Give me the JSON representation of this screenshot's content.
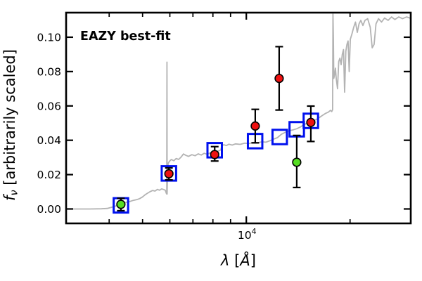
{
  "figure": {
    "annotation": {
      "text": "EAZY best-fit",
      "color": "#ee0000"
    },
    "background": "#ffffff",
    "frame_color": "#000000"
  },
  "chart_data": {
    "type": "line+scatter",
    "title": "",
    "annotation": "EAZY best-fit",
    "xlabel": "λ [Å]",
    "ylabel": "f_ν [arbitrarily scaled]",
    "x_scale": "log",
    "grid": false,
    "legend": "none",
    "xlim": [
      3000,
      30000
    ],
    "ylim": [
      -0.0084,
      0.1143
    ],
    "xlabel_parts": [
      {
        "t": "λ",
        "italic": true
      },
      {
        "t": " [",
        "italic": false
      },
      {
        "t": "Å",
        "italic": true
      },
      {
        "t": "]",
        "italic": false
      }
    ],
    "ylabel_parts": [
      {
        "t": "f",
        "italic": true
      },
      {
        "t": "ν",
        "italic": true,
        "sub": true
      },
      {
        "t": " [arbitrarily scaled]",
        "italic": false
      }
    ],
    "x_ticks": {
      "major": [
        10000
      ],
      "major_label": {
        "base": "10",
        "exp": "4"
      },
      "minor": [
        4000,
        5000,
        6000,
        7000,
        8000,
        9000,
        20000
      ]
    },
    "y_ticks": {
      "major": [
        0.0,
        0.02,
        0.04,
        0.06,
        0.08,
        0.1
      ],
      "labels": [
        "0.00",
        "0.02",
        "0.04",
        "0.06",
        "0.08",
        "0.10"
      ]
    },
    "series": [
      {
        "name": "eazy-template-spectrum",
        "type": "line",
        "color": "#b3b3b3",
        "line_width": 1.8,
        "points": [
          [
            3000,
            0.0
          ],
          [
            3500,
            0.0
          ],
          [
            3800,
            0.0001
          ],
          [
            3950,
            0.0003
          ],
          [
            4050,
            0.0009
          ],
          [
            4150,
            0.0015
          ],
          [
            4250,
            0.0023
          ],
          [
            4326,
            0.0029
          ],
          [
            4400,
            0.0034
          ],
          [
            4500,
            0.004
          ],
          [
            4600,
            0.0044
          ],
          [
            4700,
            0.005
          ],
          [
            4800,
            0.0054
          ],
          [
            4900,
            0.006
          ],
          [
            5000,
            0.007
          ],
          [
            5080,
            0.0082
          ],
          [
            5150,
            0.009
          ],
          [
            5250,
            0.01
          ],
          [
            5350,
            0.0108
          ],
          [
            5430,
            0.0104
          ],
          [
            5520,
            0.0114
          ],
          [
            5600,
            0.0109
          ],
          [
            5680,
            0.0117
          ],
          [
            5760,
            0.0113
          ],
          [
            5820,
            0.0109
          ],
          [
            5860,
            0.0091
          ],
          [
            5878,
            0.0087
          ],
          [
            5884,
            0.0855
          ],
          [
            5890,
            0.0087
          ],
          [
            5905,
            0.018
          ],
          [
            5930,
            0.0265
          ],
          [
            5980,
            0.0277
          ],
          [
            6060,
            0.0288
          ],
          [
            6160,
            0.0281
          ],
          [
            6260,
            0.0294
          ],
          [
            6360,
            0.0288
          ],
          [
            6460,
            0.0301
          ],
          [
            6570,
            0.032
          ],
          [
            6680,
            0.0312
          ],
          [
            6800,
            0.0306
          ],
          [
            6950,
            0.0316
          ],
          [
            7100,
            0.031
          ],
          [
            7250,
            0.0321
          ],
          [
            7400,
            0.0314
          ],
          [
            7550,
            0.0324
          ],
          [
            7700,
            0.0318
          ],
          [
            7850,
            0.0327
          ],
          [
            8000,
            0.0323
          ],
          [
            8150,
            0.0331
          ],
          [
            8300,
            0.0338
          ],
          [
            8430,
            0.0344
          ],
          [
            8490,
            0.0367
          ],
          [
            8600,
            0.0374
          ],
          [
            8750,
            0.0369
          ],
          [
            8900,
            0.0377
          ],
          [
            9100,
            0.0372
          ],
          [
            9300,
            0.0379
          ],
          [
            9600,
            0.0376
          ],
          [
            9900,
            0.0383
          ],
          [
            10200,
            0.0381
          ],
          [
            10500,
            0.0387
          ],
          [
            10800,
            0.0385
          ],
          [
            11100,
            0.0391
          ],
          [
            11400,
            0.0389
          ],
          [
            11700,
            0.0397
          ],
          [
            12000,
            0.0407
          ],
          [
            12300,
            0.0415
          ],
          [
            12650,
            0.0435
          ],
          [
            13000,
            0.0447
          ],
          [
            13300,
            0.0455
          ],
          [
            13700,
            0.0461
          ],
          [
            14000,
            0.0467
          ],
          [
            14350,
            0.0477
          ],
          [
            14700,
            0.0491
          ],
          [
            15000,
            0.0499
          ],
          [
            15400,
            0.0509
          ],
          [
            15800,
            0.0517
          ],
          [
            16200,
            0.0529
          ],
          [
            16600,
            0.0544
          ],
          [
            17000,
            0.0557
          ],
          [
            17300,
            0.0564
          ],
          [
            17550,
            0.0574
          ],
          [
            17700,
            0.0567
          ],
          [
            17800,
            0.0578
          ],
          [
            17840,
            0.1135
          ],
          [
            17890,
            0.1
          ],
          [
            17940,
            0.076
          ],
          [
            18040,
            0.0782
          ],
          [
            18140,
            0.082
          ],
          [
            18240,
            0.0758
          ],
          [
            18390,
            0.07
          ],
          [
            18540,
            0.0858
          ],
          [
            18690,
            0.0878
          ],
          [
            18840,
            0.084
          ],
          [
            18990,
            0.09
          ],
          [
            19140,
            0.0928
          ],
          [
            19290,
            0.068
          ],
          [
            19440,
            0.0918
          ],
          [
            19590,
            0.0958
          ],
          [
            19740,
            0.0978
          ],
          [
            19890,
            0.08
          ],
          [
            20040,
            0.0988
          ],
          [
            20240,
            0.1018
          ],
          [
            20490,
            0.1058
          ],
          [
            20740,
            0.1088
          ],
          [
            20990,
            0.1028
          ],
          [
            21240,
            0.1078
          ],
          [
            21490,
            0.1098
          ],
          [
            21790,
            0.1068
          ],
          [
            22090,
            0.1098
          ],
          [
            22490,
            0.1108
          ],
          [
            22890,
            0.1058
          ],
          [
            23190,
            0.0938
          ],
          [
            23490,
            0.0958
          ],
          [
            23790,
            0.1078
          ],
          [
            24190,
            0.1108
          ],
          [
            24690,
            0.1088
          ],
          [
            25190,
            0.1112
          ],
          [
            25790,
            0.1098
          ],
          [
            26390,
            0.1118
          ],
          [
            26990,
            0.1103
          ],
          [
            27690,
            0.1118
          ],
          [
            28390,
            0.1108
          ],
          [
            29190,
            0.1118
          ],
          [
            30000,
            0.111
          ]
        ]
      },
      {
        "name": "model-photometry",
        "type": "scatter",
        "marker": "open-square",
        "color": "#0011ee",
        "marker_size": 20.5,
        "edge_width": 3,
        "points": [
          [
            4326,
            0.0021
          ],
          [
            5962,
            0.0207
          ],
          [
            8095,
            0.0342
          ],
          [
            10605,
            0.0395
          ],
          [
            12500,
            0.0419
          ],
          [
            14005,
            0.0464
          ],
          [
            15390,
            0.0513
          ]
        ]
      },
      {
        "name": "observed-photometry",
        "type": "scatter",
        "marker": "circle",
        "color": "#ee1111",
        "edge_color": "#000000",
        "marker_radius": 5.8,
        "points_with_err": [
          [
            5962,
            0.0205,
            0.0034,
            0.0036
          ],
          [
            8095,
            0.0317,
            0.0046,
            0.0038
          ],
          [
            10615,
            0.0483,
            0.0097,
            0.0098
          ],
          [
            12454,
            0.076,
            0.0185,
            0.0184
          ],
          [
            15390,
            0.0504,
            0.0095,
            0.0111
          ]
        ]
      },
      {
        "name": "flagged-photometry",
        "type": "scatter",
        "marker": "circle",
        "color": "#55dd22",
        "edge_color": "#000000",
        "marker_radius": 5.8,
        "points_with_err": [
          [
            4326,
            0.0027,
            0.0035,
            0.0037
          ],
          [
            14006,
            0.0272,
            0.0156,
            0.0147
          ]
        ]
      }
    ]
  }
}
